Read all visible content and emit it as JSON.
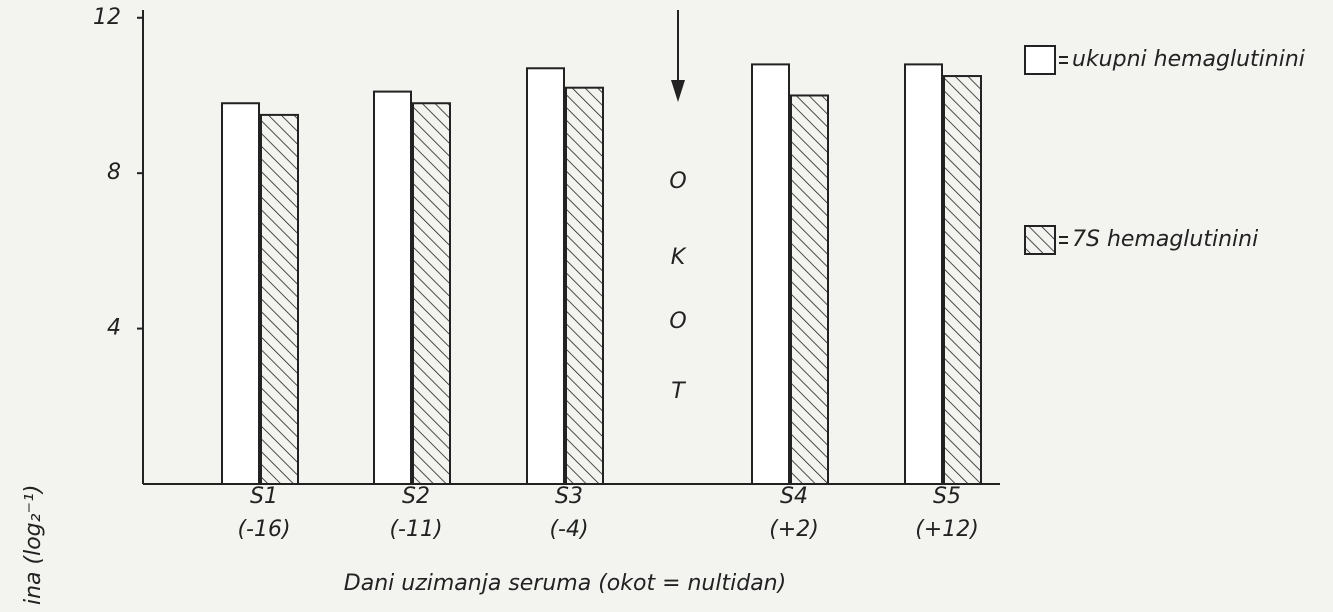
{
  "chart_data": {
    "type": "bar",
    "x_label": "Dani uzimanja seruma (okot = nultidan)",
    "y_label": "ina (log₂⁻¹)",
    "annotation": "OKOT",
    "categories": [
      "S1",
      "S2",
      "S3",
      "S4",
      "S5"
    ],
    "day_labels": [
      "(-16)",
      "(-11)",
      "(-4)",
      "(+2)",
      "(+12)"
    ],
    "series": [
      {
        "name": "ukupni hemaglutinini",
        "color": "#ffffff",
        "values": [
          9.8,
          10.1,
          10.7,
          10.8,
          10.8
        ]
      },
      {
        "name": "7S hemaglutinini",
        "color": "hatched",
        "values": [
          9.5,
          9.8,
          10.2,
          10.0,
          10.5
        ]
      }
    ],
    "ylim": [
      0,
      12.2
    ],
    "yticks": [
      4,
      8,
      12
    ]
  }
}
